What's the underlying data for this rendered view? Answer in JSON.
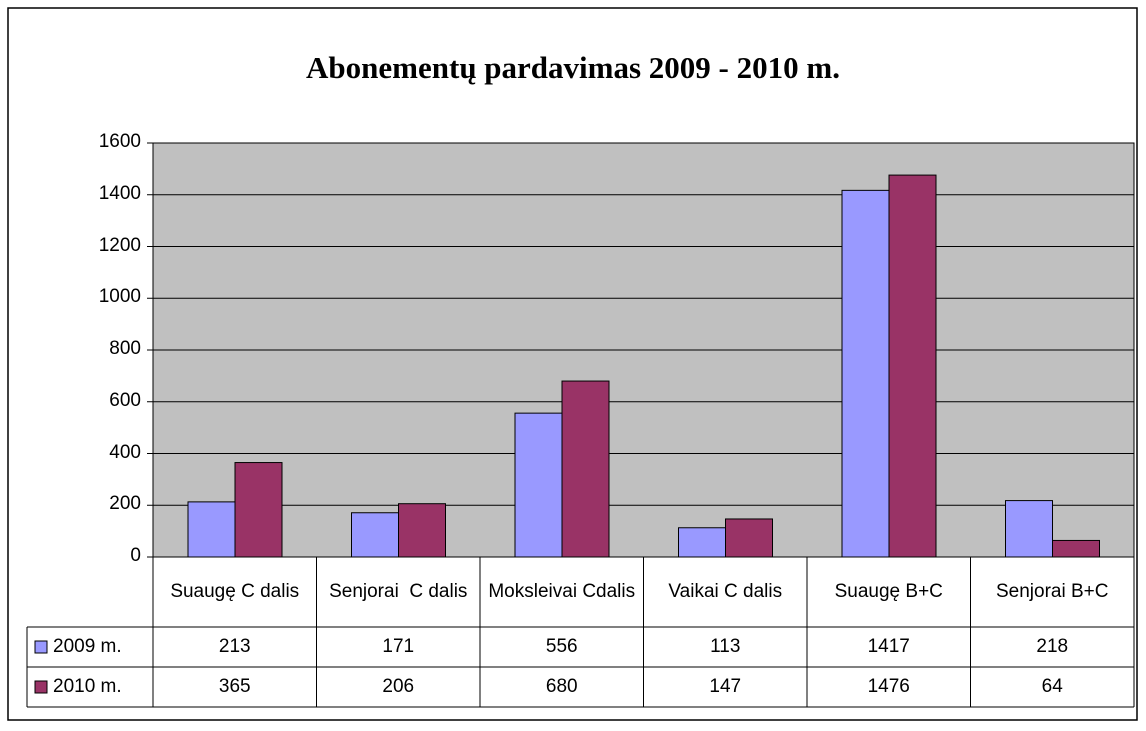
{
  "chart_data": {
    "type": "bar",
    "title": "Abonementų pardavimas 2009 - 2010 m.",
    "categories": [
      "Suaugę C dalis",
      "Senjorai  C dalis",
      "Moksleivai Cdalis",
      "Vaikai C dalis",
      "Suaugę B+C",
      "Senjorai B+C"
    ],
    "series": [
      {
        "name": "2009 m.",
        "color": "#9999ff",
        "values": [
          213,
          171,
          556,
          113,
          1417,
          218
        ]
      },
      {
        "name": "2010 m.",
        "color": "#993366",
        "values": [
          365,
          206,
          680,
          147,
          1476,
          64
        ]
      }
    ],
    "ylim": [
      0,
      1600
    ],
    "yticks": [
      0,
      200,
      400,
      600,
      800,
      1000,
      1200,
      1400,
      1600
    ],
    "grid": true,
    "plot_background": "#c0c0c0"
  }
}
